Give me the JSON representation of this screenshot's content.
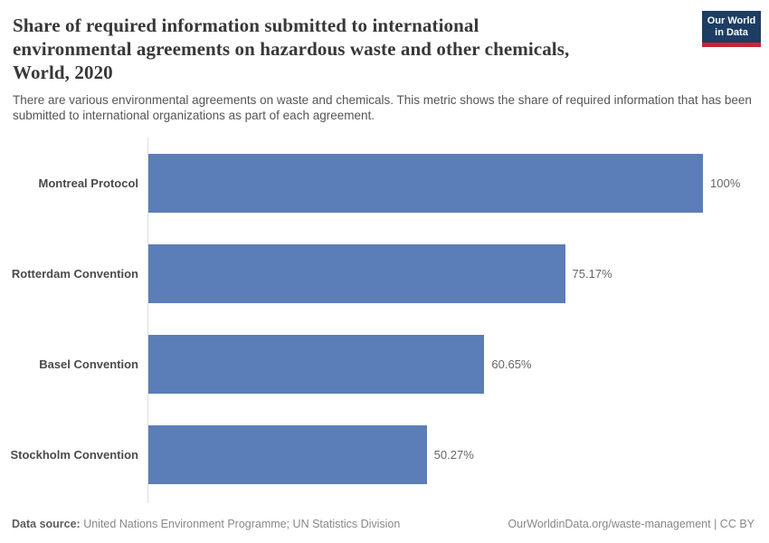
{
  "logo": {
    "line1": "Our World",
    "line2": "in Data",
    "bg_color": "#1d3d63",
    "stripe_color": "#c72535"
  },
  "header": {
    "title_lines": [
      "Share of required information submitted to international",
      "environmental agreements on hazardous waste and other chemicals,",
      "World, 2020"
    ],
    "subtitle": "There are various environmental agreements on waste and chemicals. This metric shows the share of required information that has been submitted to international organizations as part of each agreement."
  },
  "chart_data": {
    "type": "bar",
    "orientation": "horizontal",
    "title": "Share of required information submitted to international environmental agreements on hazardous waste and other chemicals, World, 2020",
    "subtitle": "There are various environmental agreements on waste and chemicals. This metric shows the share of required information that has been submitted to international organizations as part of each agreement.",
    "categories": [
      "Montreal Protocol",
      "Rotterdam Convention",
      "Basel Convention",
      "Stockholm Convention"
    ],
    "values": [
      100,
      75.17,
      60.65,
      50.27
    ],
    "value_labels": [
      "100%",
      "75.17%",
      "60.65%",
      "50.27%"
    ],
    "xlabel": "",
    "ylabel": "",
    "xlim": [
      0,
      100
    ],
    "bar_color": "#5b7eb8",
    "axis_color": "#dddddd",
    "grid": false,
    "legend": "none"
  },
  "footer": {
    "datasource_label": "Data source:",
    "datasource_value": " United Nations Environment Programme; UN Statistics Division",
    "attribution": "OurWorldinData.org/waste-management | CC BY"
  }
}
